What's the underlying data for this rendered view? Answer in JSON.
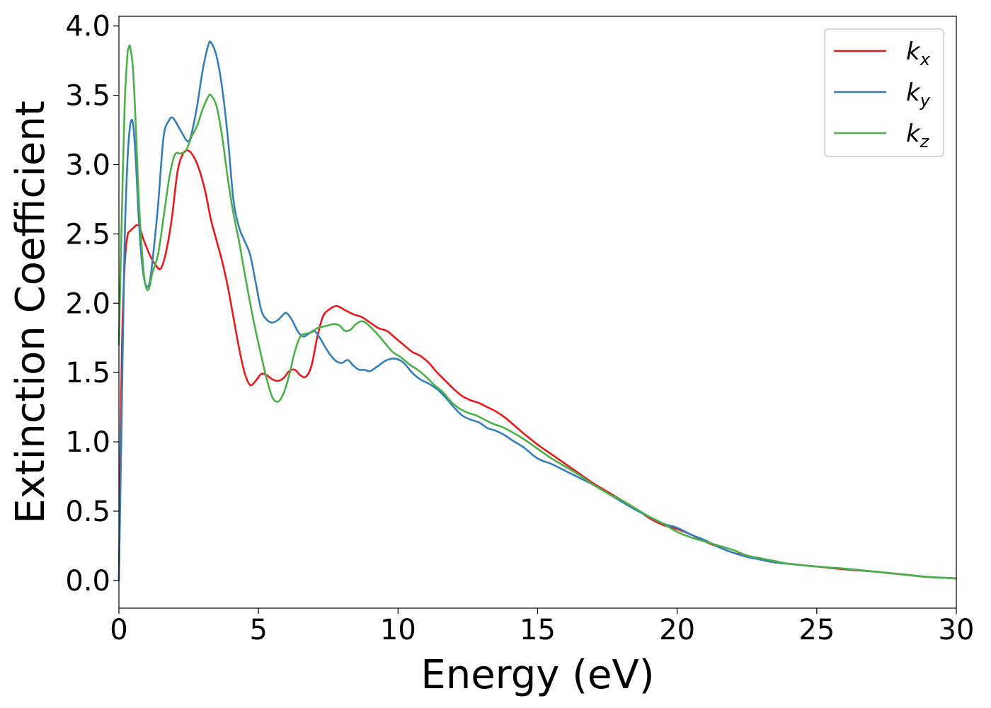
{
  "chart_data": {
    "type": "line",
    "xlabel": "Energy (eV)",
    "ylabel": "Extinction Coefficient",
    "xlim": [
      0,
      30
    ],
    "ylim": [
      -0.2,
      4.07
    ],
    "xticks": [
      0,
      5,
      10,
      15,
      20,
      25,
      30
    ],
    "yticks": [
      0.0,
      0.5,
      1.0,
      1.5,
      2.0,
      2.5,
      3.0,
      3.5,
      4.0
    ],
    "xtick_labels": [
      "0",
      "5",
      "10",
      "15",
      "20",
      "25",
      "30"
    ],
    "ytick_labels": [
      "0.0",
      "0.5",
      "1.0",
      "1.5",
      "2.0",
      "2.5",
      "3.0",
      "3.5",
      "4.0"
    ],
    "grid": false,
    "legend": "top-right",
    "series": [
      {
        "name": "kx",
        "name_base": "k",
        "name_sub": "x",
        "color": "#e41a1c",
        "x": [
          0,
          0.1,
          0.2,
          0.3,
          0.4,
          0.5,
          0.7,
          0.9,
          1.1,
          1.3,
          1.5,
          1.7,
          1.9,
          2.1,
          2.3,
          2.5,
          2.7,
          2.9,
          3.1,
          3.3,
          3.5,
          3.7,
          3.9,
          4.1,
          4.3,
          4.5,
          4.7,
          4.9,
          5.1,
          5.3,
          5.5,
          5.7,
          5.9,
          6.1,
          6.3,
          6.5,
          6.7,
          6.9,
          7.1,
          7.3,
          7.5,
          7.8,
          8.1,
          8.4,
          8.7,
          9.0,
          9.3,
          9.6,
          9.9,
          10.2,
          10.5,
          10.8,
          11.1,
          11.4,
          11.7,
          12.0,
          12.3,
          12.6,
          12.9,
          13.2,
          13.5,
          13.8,
          14.1,
          14.5,
          15.0,
          15.5,
          16.0,
          16.5,
          17.0,
          17.5,
          18.0,
          18.5,
          19.0,
          19.5,
          20.0,
          20.5,
          21.0,
          21.5,
          22.0,
          22.5,
          23.0,
          23.5,
          24.0,
          25.0,
          26.0,
          27.0,
          28.0,
          29.0,
          30.0
        ],
        "values": [
          0.0,
          1.6,
          2.25,
          2.48,
          2.52,
          2.54,
          2.56,
          2.45,
          2.35,
          2.28,
          2.25,
          2.38,
          2.62,
          2.95,
          3.08,
          3.1,
          3.05,
          2.95,
          2.8,
          2.6,
          2.45,
          2.3,
          2.12,
          1.9,
          1.68,
          1.5,
          1.41,
          1.44,
          1.49,
          1.48,
          1.45,
          1.44,
          1.46,
          1.51,
          1.52,
          1.48,
          1.47,
          1.55,
          1.75,
          1.9,
          1.95,
          1.98,
          1.95,
          1.92,
          1.9,
          1.86,
          1.82,
          1.8,
          1.75,
          1.7,
          1.65,
          1.62,
          1.57,
          1.5,
          1.44,
          1.38,
          1.33,
          1.3,
          1.28,
          1.25,
          1.22,
          1.18,
          1.13,
          1.06,
          0.98,
          0.91,
          0.84,
          0.77,
          0.7,
          0.64,
          0.58,
          0.52,
          0.45,
          0.4,
          0.37,
          0.33,
          0.28,
          0.24,
          0.2,
          0.18,
          0.15,
          0.13,
          0.12,
          0.1,
          0.08,
          0.065,
          0.045,
          0.025,
          0.015
        ]
      },
      {
        "name": "ky",
        "name_base": "k",
        "name_sub": "y",
        "color": "#377eb8",
        "x": [
          0,
          0.1,
          0.2,
          0.3,
          0.4,
          0.5,
          0.6,
          0.7,
          0.8,
          0.9,
          1.0,
          1.1,
          1.2,
          1.4,
          1.6,
          1.8,
          1.9,
          2.0,
          2.2,
          2.4,
          2.5,
          2.6,
          2.8,
          3.0,
          3.2,
          3.3,
          3.5,
          3.7,
          3.9,
          4.1,
          4.3,
          4.5,
          4.7,
          4.9,
          5.1,
          5.3,
          5.5,
          5.7,
          5.9,
          6.0,
          6.2,
          6.4,
          6.6,
          6.8,
          7.0,
          7.2,
          7.4,
          7.6,
          7.8,
          8.0,
          8.2,
          8.4,
          8.6,
          8.8,
          9.0,
          9.3,
          9.6,
          9.9,
          10.2,
          10.5,
          10.8,
          11.1,
          11.4,
          11.7,
          12.0,
          12.3,
          12.6,
          12.9,
          13.2,
          13.5,
          13.8,
          14.1,
          14.5,
          15.0,
          15.5,
          16.0,
          16.5,
          17.0,
          17.5,
          18.0,
          18.5,
          19.0,
          19.5,
          20.0,
          20.5,
          21.0,
          21.5,
          22.0,
          22.5,
          23.0,
          23.5,
          24.0,
          25.0,
          26.0,
          27.0,
          28.0,
          29.0,
          30.0
        ],
        "values": [
          0.0,
          1.2,
          2.4,
          3.0,
          3.28,
          3.3,
          3.05,
          2.65,
          2.35,
          2.18,
          2.12,
          2.15,
          2.3,
          2.7,
          3.2,
          3.32,
          3.34,
          3.32,
          3.25,
          3.18,
          3.17,
          3.22,
          3.42,
          3.68,
          3.86,
          3.88,
          3.78,
          3.55,
          3.2,
          2.75,
          2.55,
          2.45,
          2.35,
          2.15,
          1.95,
          1.88,
          1.86,
          1.88,
          1.92,
          1.93,
          1.88,
          1.8,
          1.76,
          1.78,
          1.8,
          1.75,
          1.68,
          1.62,
          1.58,
          1.57,
          1.59,
          1.55,
          1.52,
          1.52,
          1.51,
          1.55,
          1.59,
          1.6,
          1.57,
          1.5,
          1.45,
          1.42,
          1.38,
          1.32,
          1.25,
          1.19,
          1.16,
          1.14,
          1.1,
          1.08,
          1.05,
          1.01,
          0.96,
          0.88,
          0.84,
          0.79,
          0.74,
          0.69,
          0.63,
          0.57,
          0.51,
          0.46,
          0.41,
          0.38,
          0.33,
          0.29,
          0.24,
          0.2,
          0.17,
          0.15,
          0.13,
          0.12,
          0.1,
          0.085,
          0.065,
          0.045,
          0.025,
          0.015
        ]
      },
      {
        "name": "kz",
        "name_base": "k",
        "name_sub": "z",
        "color": "#4daf4a",
        "x": [
          0,
          0.1,
          0.2,
          0.3,
          0.35,
          0.4,
          0.5,
          0.6,
          0.7,
          0.8,
          0.9,
          1.0,
          1.1,
          1.2,
          1.4,
          1.6,
          1.8,
          2.0,
          2.2,
          2.4,
          2.6,
          2.8,
          3.0,
          3.2,
          3.3,
          3.5,
          3.7,
          3.9,
          4.1,
          4.3,
          4.5,
          4.7,
          4.9,
          5.1,
          5.3,
          5.5,
          5.7,
          5.9,
          6.1,
          6.3,
          6.5,
          6.7,
          6.9,
          7.1,
          7.3,
          7.5,
          7.7,
          7.9,
          8.1,
          8.3,
          8.5,
          8.7,
          8.9,
          9.2,
          9.5,
          9.8,
          10.1,
          10.4,
          10.7,
          11.0,
          11.3,
          11.6,
          11.9,
          12.2,
          12.5,
          12.8,
          13.1,
          13.4,
          13.7,
          14.0,
          14.5,
          15.0,
          15.5,
          16.0,
          16.5,
          17.0,
          17.5,
          18.0,
          18.5,
          19.0,
          19.5,
          20.0,
          20.5,
          21.0,
          21.5,
          22.0,
          22.5,
          23.0,
          23.5,
          24.0,
          25.0,
          26.0,
          27.0,
          28.0,
          29.0,
          30.0
        ],
        "values": [
          1.7,
          2.6,
          3.4,
          3.78,
          3.84,
          3.85,
          3.7,
          3.3,
          2.8,
          2.45,
          2.2,
          2.1,
          2.12,
          2.22,
          2.35,
          2.62,
          2.9,
          3.07,
          3.08,
          3.1,
          3.2,
          3.28,
          3.4,
          3.49,
          3.5,
          3.42,
          3.2,
          2.9,
          2.65,
          2.45,
          2.22,
          2.0,
          1.8,
          1.62,
          1.45,
          1.32,
          1.29,
          1.35,
          1.48,
          1.65,
          1.76,
          1.78,
          1.79,
          1.82,
          1.83,
          1.84,
          1.85,
          1.84,
          1.8,
          1.81,
          1.85,
          1.87,
          1.85,
          1.79,
          1.72,
          1.65,
          1.61,
          1.56,
          1.52,
          1.47,
          1.41,
          1.36,
          1.29,
          1.24,
          1.21,
          1.19,
          1.16,
          1.13,
          1.11,
          1.08,
          1.02,
          0.95,
          0.88,
          0.82,
          0.76,
          0.69,
          0.63,
          0.58,
          0.52,
          0.46,
          0.41,
          0.35,
          0.31,
          0.28,
          0.25,
          0.22,
          0.18,
          0.16,
          0.14,
          0.12,
          0.1,
          0.085,
          0.065,
          0.045,
          0.025,
          0.015
        ]
      }
    ]
  }
}
